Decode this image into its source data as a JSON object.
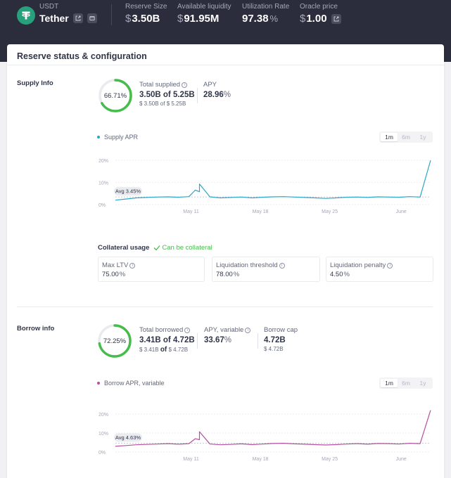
{
  "header": {
    "symbol": "USDT",
    "name": "Tether",
    "stats": [
      {
        "label": "Reserve Size",
        "prefix": "$",
        "value": "3.50B",
        "suffix": ""
      },
      {
        "label": "Available liquidity",
        "prefix": "$",
        "value": "91.95M",
        "suffix": ""
      },
      {
        "label": "Utilization Rate",
        "prefix": "",
        "value": "97.38",
        "suffix": "%"
      },
      {
        "label": "Oracle price",
        "prefix": "$",
        "value": "1.00",
        "suffix": ""
      }
    ]
  },
  "card": {
    "title": "Reserve status & configuration"
  },
  "supply": {
    "section_label": "Supply Info",
    "ring_percent": "66.71%",
    "ring_fraction": 0.6671,
    "total_label": "Total supplied",
    "total_value": "3.50B",
    "total_of": "of",
    "total_cap": "5.25B",
    "total_sub": "$ 3.50B of $ 5.25B",
    "apy_label": "APY",
    "apy_value": "28.96",
    "apy_suffix": "%",
    "chart_legend": "Supply APR",
    "ranges": [
      "1m",
      "6m",
      "1y"
    ],
    "avg_label": "Avg 3.45%"
  },
  "collateral": {
    "label": "Collateral usage",
    "status": "Can be collateral",
    "boxes": [
      {
        "label": "Max LTV",
        "value": "75.00",
        "suffix": "%"
      },
      {
        "label": "Liquidation threshold",
        "value": "78.00",
        "suffix": "%"
      },
      {
        "label": "Liquidation penalty",
        "value": "4.50",
        "suffix": "%"
      }
    ]
  },
  "borrow": {
    "section_label": "Borrow info",
    "ring_percent": "72.25%",
    "ring_fraction": 0.7225,
    "total_label": "Total borrowed",
    "total_value": "3.41B",
    "total_of": "of",
    "total_cap": "4.72B",
    "total_sub_a": "$ 3.41B",
    "total_sub_of": "of",
    "total_sub_b": "$ 4.72B",
    "apy_label": "APY, variable",
    "apy_value": "33.67",
    "apy_suffix": "%",
    "cap_label": "Borrow cap",
    "cap_value": "4.72B",
    "cap_sub": "$ 4.72B",
    "chart_legend": "Borrow APR, variable",
    "ranges": [
      "1m",
      "6m",
      "1y"
    ],
    "avg_label": "Avg 4.63%"
  },
  "colors": {
    "header_bg": "#2b2d3c",
    "supply_line": "#2ea5c8",
    "borrow_line": "#b6509e",
    "ring": "#46bc4b",
    "tether": "#26a17b"
  },
  "chart_data": [
    {
      "type": "line",
      "series": [
        {
          "name": "Supply APR"
        }
      ],
      "x_ticks": [
        "May 11",
        "May 18",
        "May 25",
        "June"
      ],
      "y_ticks": [
        "0%",
        "10%",
        "20%"
      ],
      "ylim": [
        0,
        20
      ],
      "x": [
        0,
        1,
        2,
        3,
        4,
        5,
        6,
        7,
        8,
        9,
        10,
        11,
        12,
        13,
        14,
        15,
        16,
        17,
        18,
        19,
        20,
        21,
        22,
        23,
        24,
        25,
        26,
        27,
        28,
        29,
        30
      ],
      "values": [
        2.0,
        2.5,
        3.0,
        3.2,
        3.4,
        3.5,
        3.3,
        3.6,
        5.8,
        3.5,
        3.0,
        3.2,
        3.4,
        3.0,
        3.3,
        3.5,
        3.6,
        3.4,
        3.2,
        3.0,
        2.8,
        3.0,
        3.3,
        3.4,
        3.2,
        3.5,
        3.4,
        3.3,
        3.6,
        3.4,
        20.0
      ],
      "spikes": [
        {
          "x": 7.6,
          "y": 6.5
        },
        {
          "x": 8.0,
          "y": 9.3
        }
      ],
      "avg": 3.45,
      "grid": true
    },
    {
      "type": "line",
      "series": [
        {
          "name": "Borrow APR, variable"
        }
      ],
      "x_ticks": [
        "May 11",
        "May 18",
        "May 25",
        "June"
      ],
      "y_ticks": [
        "0%",
        "10%",
        "20%"
      ],
      "ylim": [
        0,
        20
      ],
      "x": [
        0,
        1,
        2,
        3,
        4,
        5,
        6,
        7,
        8,
        9,
        10,
        11,
        12,
        13,
        14,
        15,
        16,
        17,
        18,
        19,
        20,
        21,
        22,
        23,
        24,
        25,
        26,
        27,
        28,
        29,
        30
      ],
      "values": [
        3.0,
        3.4,
        3.8,
        4.0,
        4.2,
        4.4,
        4.1,
        4.4,
        6.5,
        4.2,
        3.8,
        4.0,
        4.3,
        3.9,
        4.2,
        4.5,
        4.6,
        4.3,
        4.1,
        3.9,
        3.7,
        3.9,
        4.2,
        4.4,
        4.1,
        4.5,
        4.4,
        4.2,
        4.6,
        4.4,
        22.0
      ],
      "spikes": [
        {
          "x": 7.6,
          "y": 7.0
        },
        {
          "x": 8.0,
          "y": 10.7
        }
      ],
      "avg": 4.63,
      "grid": true
    }
  ]
}
